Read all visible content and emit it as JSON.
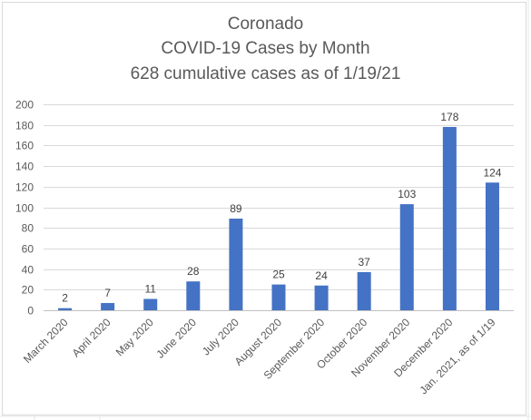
{
  "chart_data": {
    "type": "bar",
    "title_lines": [
      "Coronado",
      "COVID-19 Cases by Month",
      "628 cumulative cases as of 1/19/21"
    ],
    "xlabel": "",
    "ylabel": "",
    "categories": [
      "March 2020",
      "April 2020",
      "May 2020",
      "June 2020",
      "July 2020",
      "August 2020",
      "September 2020",
      "October 2020",
      "November 2020",
      "December 2020",
      "Jan. 2021, as of 1/19"
    ],
    "values": [
      2,
      7,
      11,
      28,
      89,
      25,
      24,
      37,
      103,
      178,
      124
    ],
    "ylim": [
      0,
      200
    ],
    "yticks": [
      0,
      20,
      40,
      60,
      80,
      100,
      120,
      140,
      160,
      180,
      200
    ],
    "grid": "horizontal",
    "legend": "none",
    "data_labels": true,
    "bar_color": "#4472c4",
    "grid_color": "#d9d9d9"
  }
}
